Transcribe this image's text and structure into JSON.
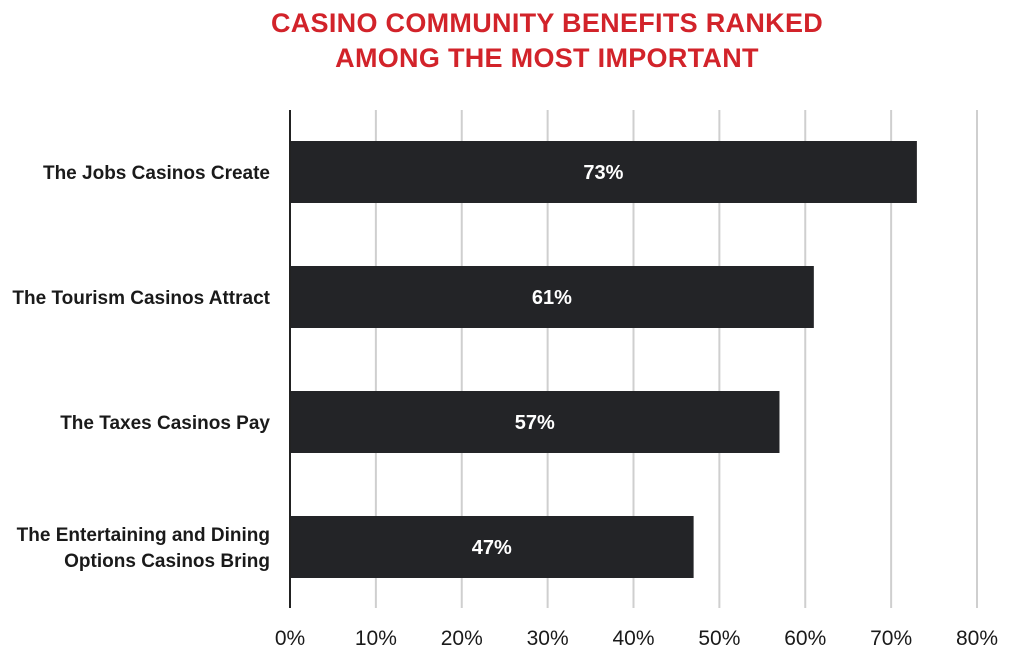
{
  "chart_data": {
    "type": "bar",
    "orientation": "horizontal",
    "title_lines": [
      "CASINO COMMUNITY BENEFITS RANKED",
      "AMONG THE MOST IMPORTANT"
    ],
    "categories": [
      [
        "The Jobs Casinos Create"
      ],
      [
        "The Tourism Casinos Attract"
      ],
      [
        "The Taxes Casinos Pay"
      ],
      [
        "The Entertaining and Dining",
        "Options Casinos Bring"
      ]
    ],
    "values": [
      73,
      61,
      57,
      47
    ],
    "value_labels": [
      "73%",
      "61%",
      "57%",
      "47%"
    ],
    "xlim": [
      0,
      80
    ],
    "xticks": [
      0,
      10,
      20,
      30,
      40,
      50,
      60,
      70,
      80
    ],
    "xtick_labels": [
      "0%",
      "10%",
      "20%",
      "30%",
      "40%",
      "50%",
      "60%",
      "70%",
      "80%"
    ],
    "grid": true,
    "colors": {
      "title": "#d2232a",
      "bar": "#232427",
      "grid": "#cfcfcf",
      "axis": "#222222"
    }
  }
}
